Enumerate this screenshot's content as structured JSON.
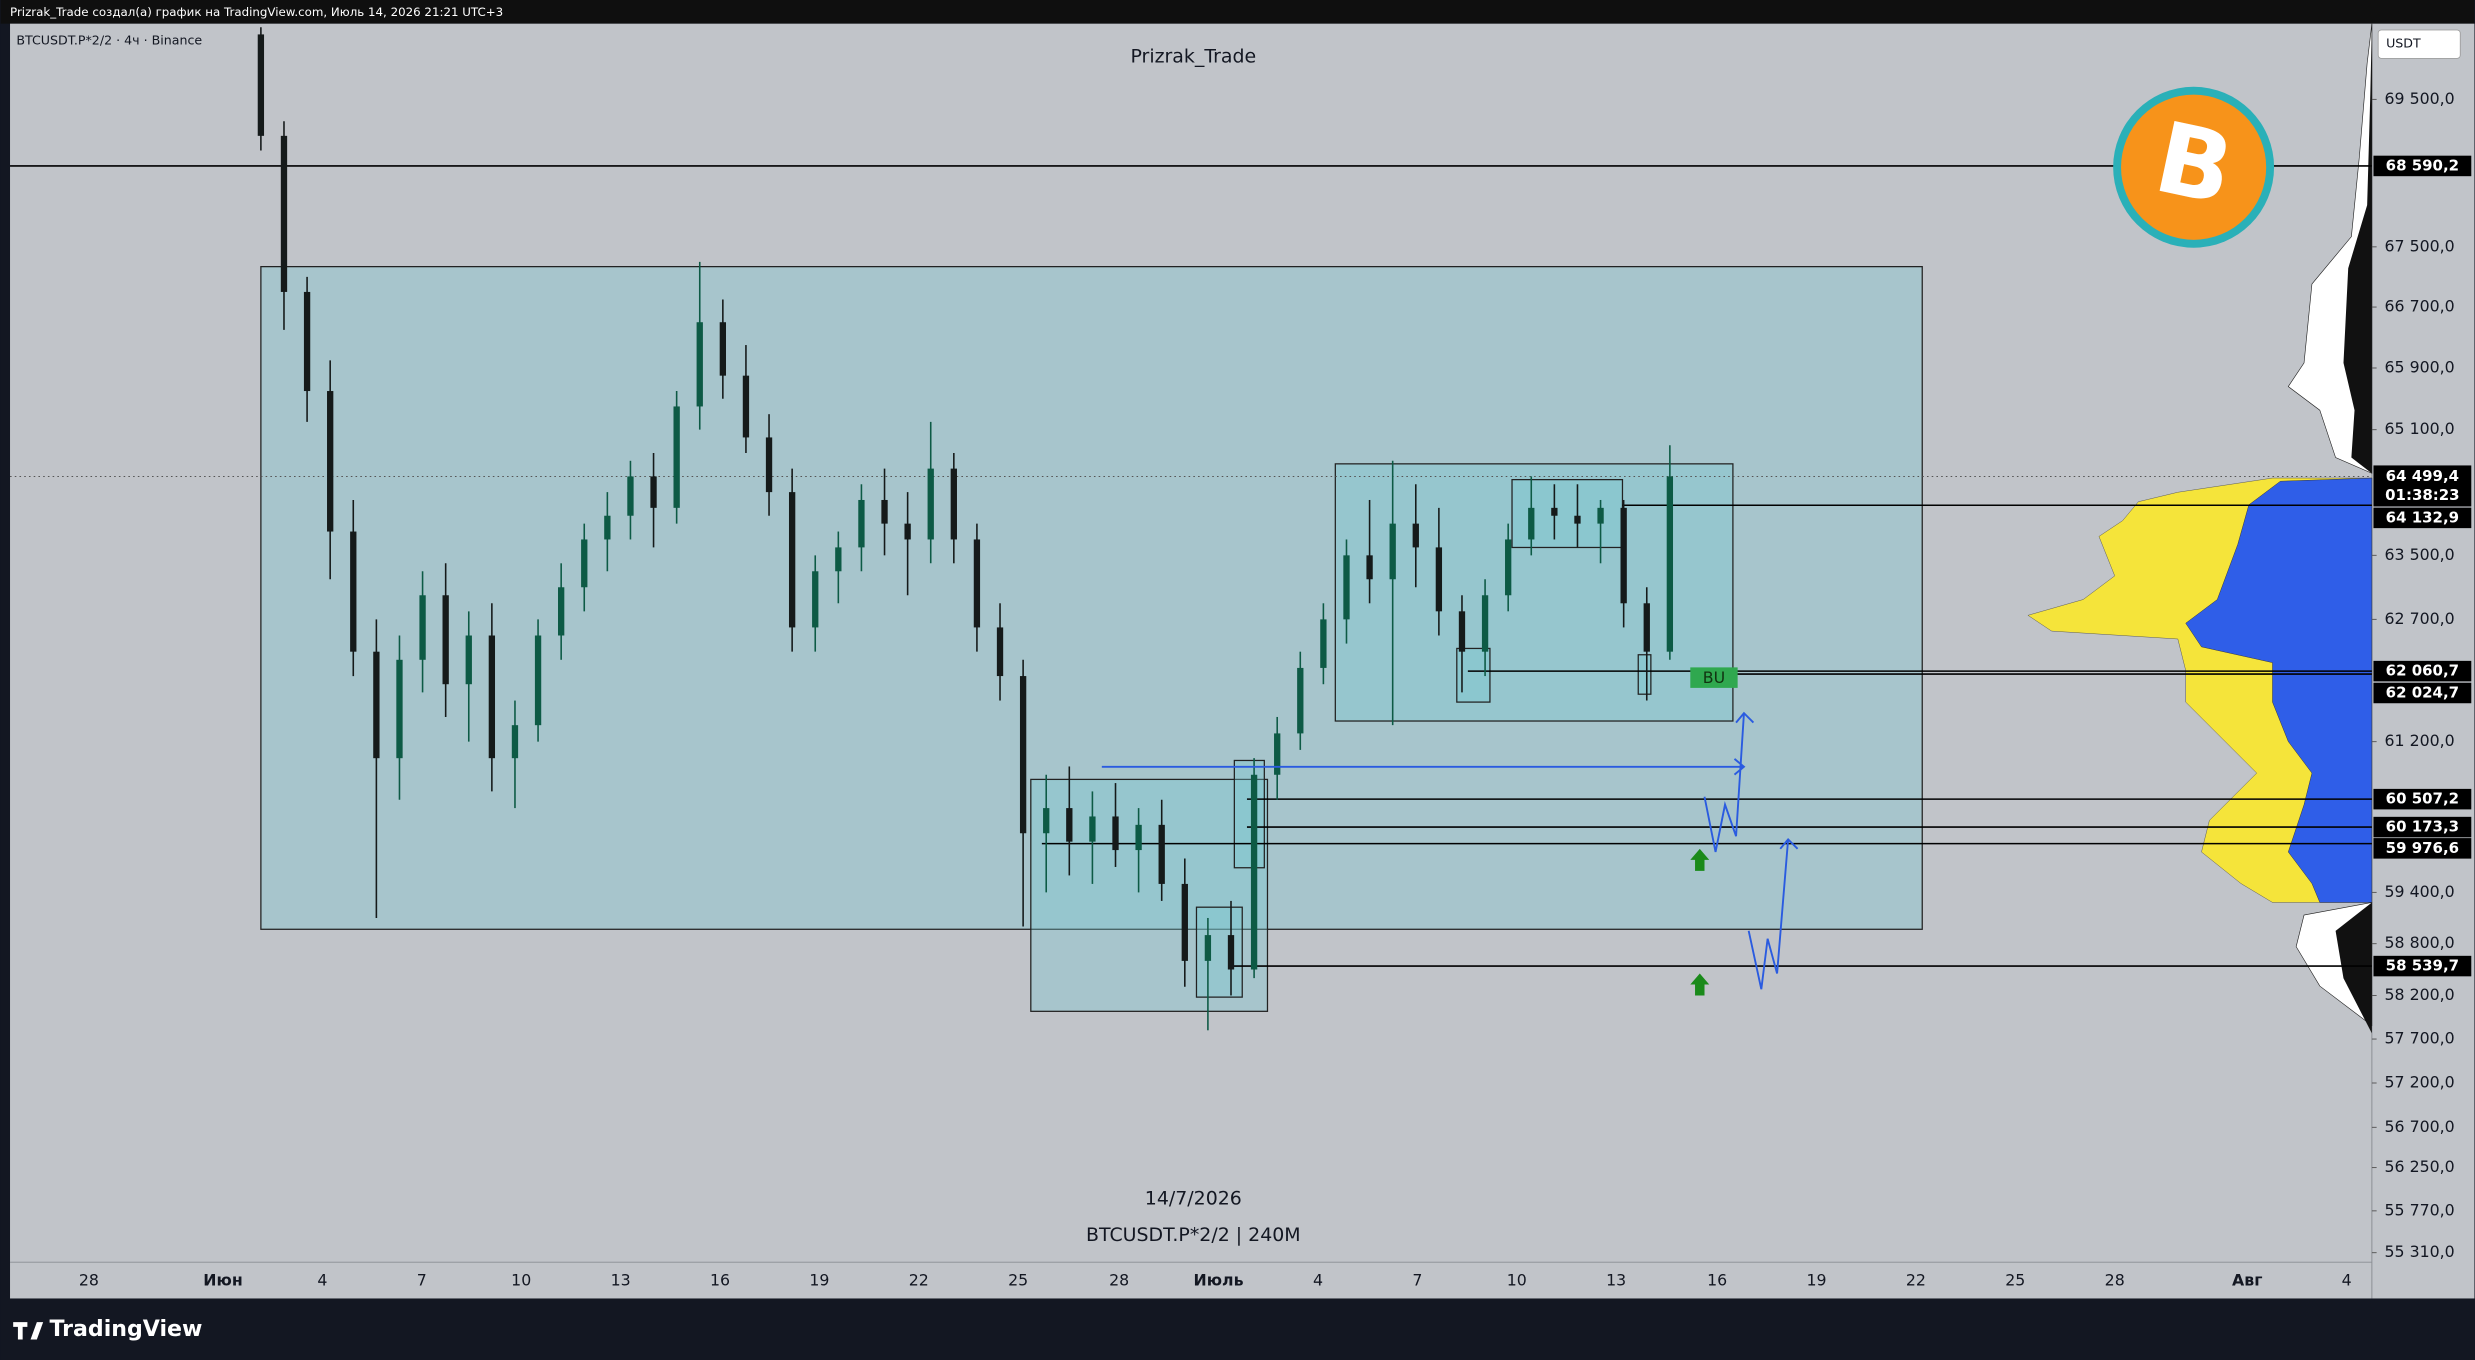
{
  "header": {
    "caption": "Prizrak_Trade создал(а) график на TradingView.com, Июль 14, 2026 21:21 UTC+3"
  },
  "chart": {
    "legend": "BTCUSDT.P*2/2 · 4ч · Binance",
    "watermark_top": "Prizrak_Trade",
    "date": "14/7/2026",
    "symbol": "BTCUSDT.P*2/2 | 240M",
    "currency": "USDT",
    "badge": "BU",
    "log_scale": true,
    "ylim": [
      55206,
      70550
    ],
    "price_ticks": [
      {
        "value": 69500,
        "label": "69 500,0"
      },
      {
        "value": 67500,
        "label": "67 500,0"
      },
      {
        "value": 66700,
        "label": "66 700,0"
      },
      {
        "value": 65900,
        "label": "65 900,0"
      },
      {
        "value": 65100,
        "label": "65 100,0"
      },
      {
        "value": 63500,
        "label": "63 500,0"
      },
      {
        "value": 62700,
        "label": "62 700,0"
      },
      {
        "value": 61200,
        "label": "61 200,0"
      },
      {
        "value": 59400,
        "label": "59 400,0"
      },
      {
        "value": 58800,
        "label": "58 800,0"
      },
      {
        "value": 58200,
        "label": "58 200,0"
      },
      {
        "value": 57700,
        "label": "57 700,0"
      },
      {
        "value": 57200,
        "label": "57 200,0"
      },
      {
        "value": 56700,
        "label": "56 700,0"
      },
      {
        "value": 56250,
        "label": "56 250,0"
      },
      {
        "value": 55770,
        "label": "55 770,0"
      },
      {
        "value": 55310,
        "label": "55 310,0"
      }
    ],
    "time_ticks": [
      28,
      "Июн",
      4,
      7,
      10,
      13,
      16,
      19,
      22,
      25,
      28,
      "Июль",
      4,
      7,
      10,
      13,
      16,
      19,
      22,
      25,
      28,
      "Авг",
      4
    ],
    "current_price": {
      "value": 64499.4,
      "label": "64 499,4",
      "countdown": "01:38:23"
    },
    "levels": [
      {
        "value": 68590.2,
        "label": "68 590,2"
      },
      {
        "value": 64132.9,
        "label": "64 132,9"
      },
      {
        "value": 62060.7,
        "label": "62 060,7"
      },
      {
        "value": 62024.7,
        "label": "62 024,7"
      },
      {
        "value": 60507.2,
        "label": "60 507,2"
      },
      {
        "value": 60173.3,
        "label": "60 173,3"
      },
      {
        "value": 59976.6,
        "label": "59 976,6"
      },
      {
        "value": 58539.7,
        "label": "58 539,7"
      }
    ],
    "candles": [
      [
        70400,
        70500,
        68800,
        69000
      ],
      [
        69000,
        69200,
        66400,
        66900
      ],
      [
        66900,
        67100,
        65200,
        65600
      ],
      [
        65600,
        66000,
        63200,
        63800
      ],
      [
        63800,
        64200,
        62000,
        62300
      ],
      [
        62300,
        62700,
        59100,
        61000
      ],
      [
        61000,
        62500,
        60500,
        62200
      ],
      [
        62200,
        63300,
        61800,
        63000
      ],
      [
        63000,
        63400,
        61500,
        61900
      ],
      [
        61900,
        62800,
        61200,
        62500
      ],
      [
        62500,
        62900,
        60600,
        61000
      ],
      [
        61000,
        61700,
        60400,
        61400
      ],
      [
        61400,
        62700,
        61200,
        62500
      ],
      [
        62500,
        63400,
        62200,
        63100
      ],
      [
        63100,
        63900,
        62800,
        63700
      ],
      [
        63700,
        64300,
        63300,
        64000
      ],
      [
        64000,
        64700,
        63700,
        64500
      ],
      [
        64500,
        64800,
        63600,
        64100
      ],
      [
        64100,
        65600,
        63900,
        65400
      ],
      [
        65400,
        67300,
        65100,
        66500
      ],
      [
        66500,
        66800,
        65500,
        65800
      ],
      [
        65800,
        66200,
        64800,
        65000
      ],
      [
        65000,
        65300,
        64000,
        64300
      ],
      [
        64300,
        64600,
        62300,
        62600
      ],
      [
        62600,
        63500,
        62300,
        63300
      ],
      [
        63300,
        63800,
        62900,
        63600
      ],
      [
        63600,
        64400,
        63300,
        64200
      ],
      [
        64200,
        64600,
        63500,
        63900
      ],
      [
        63900,
        64300,
        63000,
        63700
      ],
      [
        63700,
        65200,
        63400,
        64600
      ],
      [
        64600,
        64800,
        63400,
        63700
      ],
      [
        63700,
        63900,
        62300,
        62600
      ],
      [
        62600,
        62900,
        61700,
        62000
      ],
      [
        62000,
        62200,
        59000,
        60100
      ],
      [
        60100,
        60800,
        59400,
        60400
      ],
      [
        60400,
        60900,
        59600,
        60000
      ],
      [
        60000,
        60600,
        59500,
        60300
      ],
      [
        60300,
        60700,
        59700,
        59900
      ],
      [
        59900,
        60400,
        59400,
        60200
      ],
      [
        60200,
        60500,
        59300,
        59500
      ],
      [
        59500,
        59800,
        58300,
        58600
      ],
      [
        58600,
        59100,
        57800,
        58900
      ],
      [
        58900,
        59300,
        58200,
        58500
      ],
      [
        58500,
        61000,
        58400,
        60800
      ],
      [
        60800,
        61500,
        60500,
        61300
      ],
      [
        61300,
        62300,
        61100,
        62100
      ],
      [
        62100,
        62900,
        61900,
        62700
      ],
      [
        62700,
        63700,
        62400,
        63500
      ],
      [
        63500,
        64200,
        62900,
        63200
      ],
      [
        63200,
        64700,
        61400,
        63900
      ],
      [
        63900,
        64400,
        63100,
        63600
      ],
      [
        63600,
        64100,
        62500,
        62800
      ],
      [
        62800,
        63000,
        61800,
        62300
      ],
      [
        62300,
        63200,
        62000,
        63000
      ],
      [
        63000,
        63900,
        62800,
        63700
      ],
      [
        63700,
        64500,
        63500,
        64100
      ],
      [
        64100,
        64400,
        63700,
        64000
      ],
      [
        64000,
        64400,
        63600,
        63900
      ],
      [
        63900,
        64200,
        63400,
        64100
      ],
      [
        64100,
        64200,
        62600,
        62900
      ],
      [
        62900,
        63100,
        61700,
        62300
      ],
      [
        62300,
        64900,
        62200,
        64500
      ]
    ]
  },
  "footer": {
    "brand": "TradingView"
  }
}
